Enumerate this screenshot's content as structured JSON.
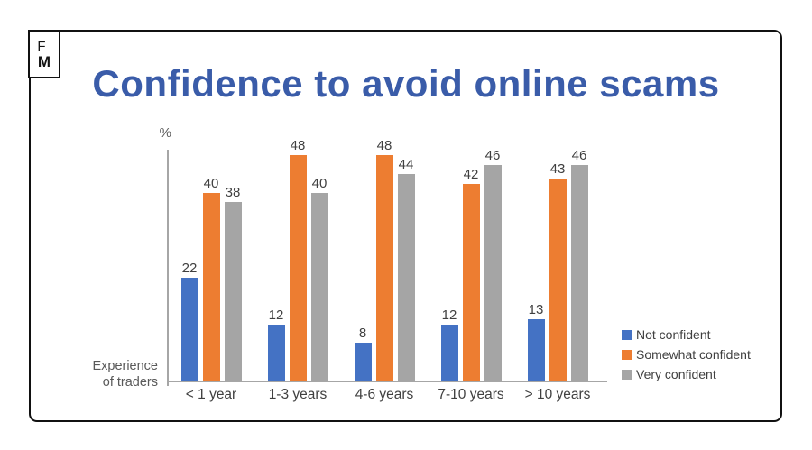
{
  "logo": {
    "line1": "F",
    "line2": "M"
  },
  "title": "Confidence to avoid online scams",
  "colors": {
    "title_blue": "#3A5CA9",
    "bar_blue": "#4472C4",
    "bar_orange": "#ED7D31",
    "bar_gray": "#A5A5A5",
    "axis_gray": "#A6A6A6",
    "label_gray": "#404040",
    "frame_black": "#111111"
  },
  "axis": {
    "y_unit_label": "%",
    "x_caption_line1": "Experience",
    "x_caption_line2": "of traders"
  },
  "chart_data": {
    "type": "bar",
    "title": "Confidence to avoid online scams",
    "categories": [
      "< 1 year",
      "1-3 years",
      "4-6 years",
      "7-10 years",
      "> 10 years"
    ],
    "series": [
      {
        "name": "Not confident",
        "color": "#4472C4",
        "values": [
          22,
          12,
          8,
          12,
          13
        ]
      },
      {
        "name": "Somewhat confident",
        "color": "#ED7D31",
        "values": [
          40,
          48,
          48,
          42,
          43
        ]
      },
      {
        "name": "Very confident",
        "color": "#A5A5A5",
        "values": [
          38,
          40,
          44,
          46,
          46
        ]
      }
    ],
    "ylabel": "%",
    "xlabel": "Experience of traders",
    "ylim": [
      0,
      50
    ],
    "grid": false,
    "data_labels": true,
    "legend_position": "bottom-right"
  }
}
